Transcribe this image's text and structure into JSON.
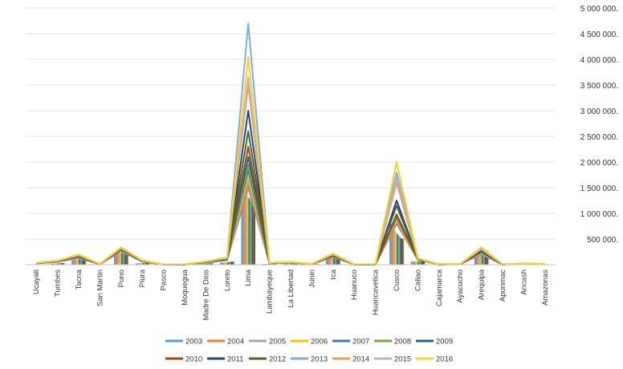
{
  "chart_data": {
    "type": "line",
    "secondary_type": "bar",
    "categories": [
      "Ucayali",
      "Tumbes",
      "Tacna",
      "San Martin",
      "Puno",
      "Piura",
      "Pasco",
      "Moquegua",
      "Madre De Dios",
      "Loreto",
      "Lima",
      "Lambayeque",
      "La Libertad",
      "Junin",
      "Ica",
      "Huanuco",
      "Huancavelica",
      "Cusco",
      "Callao",
      "Cajamarca",
      "Ayacucho",
      "Arequipa",
      "Apurimac",
      "Ancash",
      "Amazonas"
    ],
    "ylim": [
      0,
      5000000
    ],
    "y_ticks": [
      500000,
      1000000,
      1500000,
      2000000,
      2500000,
      3000000,
      3500000,
      4000000,
      4500000,
      5000000
    ],
    "y_tick_labels": [
      "500 000.",
      "1 000 000.",
      "1 500 000.",
      "2 000 000.",
      "2 500 000.",
      "3 000 000.",
      "3 500 000.",
      "4 000 000.",
      "4 500 000.",
      "5 000 000."
    ],
    "y_axis_position": "right",
    "grid": true,
    "legend_position": "bottom",
    "bar_series": [
      {
        "name": "2003",
        "color": "#5B9BD5",
        "values": [
          5000,
          20000,
          90000,
          5000,
          180000,
          25000,
          2000,
          3000,
          15000,
          40000,
          1500000,
          15000,
          20000,
          8000,
          110000,
          4000,
          3000,
          800000,
          60000,
          3000,
          5000,
          200000,
          3000,
          8000,
          5000
        ]
      },
      {
        "name": "2004",
        "color": "#ED7D31",
        "values": [
          6000,
          22000,
          95000,
          5000,
          200000,
          27000,
          2000,
          3000,
          17000,
          45000,
          1450000,
          16000,
          22000,
          9000,
          120000,
          4000,
          3000,
          780000,
          62000,
          3000,
          5000,
          210000,
          3000,
          8000,
          5000
        ]
      },
      {
        "name": "2005",
        "color": "#A5A5A5",
        "values": [
          6000,
          24000,
          100000,
          6000,
          210000,
          28000,
          2000,
          3000,
          19000,
          48000,
          1400000,
          17000,
          24000,
          9000,
          125000,
          4000,
          3000,
          700000,
          64000,
          3000,
          6000,
          220000,
          3000,
          9000,
          5000
        ]
      },
      {
        "name": "2006",
        "color": "#FFC000",
        "values": [
          7000,
          26000,
          110000,
          6000,
          220000,
          30000,
          2000,
          3000,
          21000,
          50000,
          1350000,
          18000,
          25000,
          10000,
          130000,
          5000,
          3000,
          650000,
          66000,
          4000,
          6000,
          230000,
          4000,
          9000,
          6000
        ]
      },
      {
        "name": "2007",
        "color": "#4472C4",
        "values": [
          7000,
          28000,
          115000,
          6000,
          230000,
          32000,
          2000,
          4000,
          23000,
          52000,
          1300000,
          19000,
          27000,
          10000,
          140000,
          5000,
          4000,
          600000,
          68000,
          4000,
          6000,
          240000,
          4000,
          10000,
          6000
        ]
      },
      {
        "name": "2008",
        "color": "#70AD47",
        "values": [
          8000,
          30000,
          120000,
          7000,
          240000,
          34000,
          3000,
          4000,
          25000,
          55000,
          1250000,
          20000,
          28000,
          11000,
          145000,
          5000,
          4000,
          560000,
          70000,
          4000,
          7000,
          250000,
          4000,
          10000,
          6000
        ]
      },
      {
        "name": "2009",
        "color": "#255E91",
        "values": [
          8000,
          32000,
          125000,
          7000,
          250000,
          36000,
          3000,
          4000,
          27000,
          58000,
          1200000,
          21000,
          30000,
          11000,
          150000,
          5000,
          4000,
          520000,
          72000,
          4000,
          7000,
          260000,
          4000,
          11000,
          7000
        ]
      },
      {
        "name": "2010",
        "color": "#9E480E",
        "values": [
          9000,
          34000,
          130000,
          8000,
          260000,
          38000,
          3000,
          4000,
          29000,
          60000,
          1150000,
          22000,
          32000,
          12000,
          155000,
          6000,
          4000,
          500000,
          74000,
          5000,
          7000,
          270000,
          5000,
          11000,
          7000
        ]
      }
    ],
    "series": [
      {
        "name": "2003",
        "color": "#5B9BD5",
        "values": [
          25000,
          55000,
          130000,
          10000,
          260000,
          60000,
          3000,
          5000,
          40000,
          90000,
          1500000,
          25000,
          40000,
          10000,
          150000,
          5000,
          5000,
          800000,
          100000,
          5000,
          10000,
          200000,
          5000,
          15000,
          10000
        ]
      },
      {
        "name": "2004",
        "color": "#ED7D31",
        "values": [
          26000,
          58000,
          135000,
          10000,
          270000,
          62000,
          3000,
          5000,
          42000,
          92000,
          1550000,
          26000,
          42000,
          11000,
          155000,
          5000,
          5000,
          820000,
          102000,
          5000,
          10000,
          210000,
          5000,
          16000,
          10000
        ]
      },
      {
        "name": "2005",
        "color": "#A5A5A5",
        "values": [
          27000,
          60000,
          140000,
          11000,
          280000,
          64000,
          3000,
          5000,
          44000,
          94000,
          1650000,
          27000,
          43000,
          11000,
          160000,
          5000,
          5000,
          850000,
          104000,
          5000,
          11000,
          220000,
          5000,
          16000,
          11000
        ]
      },
      {
        "name": "2006",
        "color": "#FFC000",
        "values": [
          28000,
          62000,
          145000,
          11000,
          285000,
          66000,
          3000,
          6000,
          46000,
          96000,
          1750000,
          28000,
          44000,
          12000,
          165000,
          6000,
          5000,
          900000,
          106000,
          6000,
          11000,
          230000,
          6000,
          17000,
          11000
        ]
      },
      {
        "name": "2007",
        "color": "#4472C4",
        "values": [
          29000,
          64000,
          150000,
          12000,
          290000,
          68000,
          4000,
          6000,
          48000,
          98000,
          1850000,
          29000,
          45000,
          12000,
          170000,
          6000,
          6000,
          920000,
          108000,
          6000,
          12000,
          240000,
          6000,
          17000,
          12000
        ]
      },
      {
        "name": "2008",
        "color": "#70AD47",
        "values": [
          30000,
          66000,
          155000,
          12000,
          295000,
          70000,
          4000,
          6000,
          50000,
          100000,
          1950000,
          30000,
          46000,
          13000,
          175000,
          6000,
          6000,
          950000,
          110000,
          6000,
          12000,
          250000,
          6000,
          18000,
          12000
        ]
      },
      {
        "name": "2009",
        "color": "#255E91",
        "values": [
          31000,
          68000,
          160000,
          13000,
          300000,
          72000,
          4000,
          6000,
          52000,
          105000,
          2100000,
          31000,
          47000,
          13000,
          180000,
          6000,
          6000,
          980000,
          112000,
          6000,
          13000,
          260000,
          6000,
          18000,
          13000
        ]
      },
      {
        "name": "2010",
        "color": "#9E480E",
        "values": [
          32000,
          70000,
          165000,
          13000,
          305000,
          74000,
          4000,
          7000,
          54000,
          110000,
          2300000,
          32000,
          48000,
          14000,
          185000,
          7000,
          7000,
          970000,
          114000,
          7000,
          13000,
          270000,
          7000,
          19000,
          13000
        ]
      },
      {
        "name": "2011",
        "color": "#264478",
        "values": [
          33000,
          72000,
          170000,
          14000,
          310000,
          76000,
          5000,
          7000,
          56000,
          115000,
          3000000,
          33000,
          49000,
          14000,
          190000,
          7000,
          7000,
          1250000,
          116000,
          7000,
          14000,
          280000,
          7000,
          19000,
          14000
        ]
      },
      {
        "name": "2012",
        "color": "#43682B",
        "values": [
          34000,
          74000,
          175000,
          14000,
          315000,
          78000,
          5000,
          7000,
          58000,
          120000,
          2600000,
          34000,
          50000,
          15000,
          195000,
          7000,
          7000,
          1150000,
          118000,
          7000,
          14000,
          290000,
          7000,
          20000,
          14000
        ]
      },
      {
        "name": "2013",
        "color": "#7CAFDD",
        "values": [
          35000,
          76000,
          180000,
          15000,
          320000,
          80000,
          5000,
          8000,
          60000,
          125000,
          4700000,
          35000,
          51000,
          15000,
          200000,
          8000,
          8000,
          1800000,
          120000,
          8000,
          15000,
          300000,
          8000,
          20000,
          15000
        ]
      },
      {
        "name": "2014",
        "color": "#F1975A",
        "values": [
          36000,
          78000,
          185000,
          15000,
          325000,
          82000,
          5000,
          8000,
          62000,
          130000,
          3500000,
          36000,
          52000,
          16000,
          205000,
          8000,
          8000,
          1600000,
          122000,
          8000,
          15000,
          310000,
          8000,
          21000,
          15000
        ]
      },
      {
        "name": "2015",
        "color": "#B7B7B7",
        "values": [
          37000,
          80000,
          190000,
          16000,
          330000,
          84000,
          6000,
          8000,
          64000,
          135000,
          3650000,
          37000,
          53000,
          16000,
          210000,
          8000,
          8000,
          1700000,
          124000,
          8000,
          16000,
          320000,
          8000,
          21000,
          16000
        ]
      },
      {
        "name": "2016",
        "color": "#FFCD33",
        "values": [
          38000,
          82000,
          200000,
          16000,
          340000,
          86000,
          6000,
          9000,
          66000,
          140000,
          4050000,
          38000,
          54000,
          17000,
          220000,
          9000,
          9000,
          2000000,
          126000,
          9000,
          16000,
          340000,
          9000,
          22000,
          16000
        ]
      }
    ]
  }
}
